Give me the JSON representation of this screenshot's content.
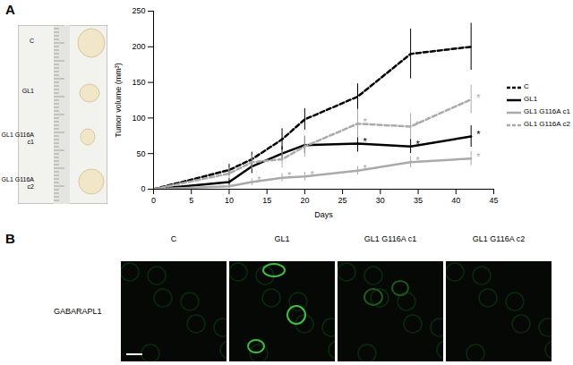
{
  "chart_data": {
    "type": "line",
    "x": [
      0,
      10,
      13,
      17,
      20,
      27,
      34,
      42
    ],
    "xlabel": "Days",
    "ylabel": "Tumor volume (mm³)",
    "xlim": [
      0,
      45
    ],
    "xticks": [
      0,
      5,
      10,
      15,
      20,
      25,
      30,
      35,
      40,
      45
    ],
    "ylim": [
      0,
      250
    ],
    "yticks": [
      0,
      50,
      100,
      150,
      200,
      250
    ],
    "grid": false,
    "legend": "right",
    "series": [
      {
        "name": "C",
        "color": "#000000",
        "line_style": "dashed",
        "values": [
          0,
          27,
          42,
          70,
          98,
          130,
          190,
          200
        ],
        "errors": [
          null,
          8,
          10,
          15,
          15,
          18,
          35,
          33
        ],
        "significance": [
          null,
          null,
          null,
          null,
          null,
          null,
          null,
          null
        ]
      },
      {
        "name": "GL1",
        "color": "#000000",
        "line_style": "solid",
        "values": [
          0,
          10,
          32,
          50,
          62,
          64,
          60,
          74
        ],
        "errors": [
          null,
          5,
          10,
          10,
          12,
          12,
          10,
          15
        ],
        "significance": [
          null,
          null,
          null,
          null,
          null,
          "*",
          "*",
          "*"
        ]
      },
      {
        "name": "GL1 G116A c1",
        "color": "#aaaaaa",
        "line_style": "solid",
        "values": [
          0,
          4,
          10,
          16,
          18,
          26,
          38,
          43
        ],
        "errors": [
          null,
          3,
          5,
          6,
          6,
          6,
          8,
          10
        ],
        "significance": [
          null,
          null,
          "*",
          "*",
          "*",
          "*",
          "*",
          "*"
        ]
      },
      {
        "name": "GL1 G116A c2",
        "color": "#aaaaaa",
        "line_style": "dashed",
        "values": [
          0,
          22,
          38,
          42,
          60,
          92,
          88,
          126
        ],
        "errors": [
          null,
          8,
          10,
          12,
          15,
          20,
          18,
          20
        ],
        "significance": [
          null,
          null,
          null,
          null,
          null,
          "*",
          "*",
          "*"
        ]
      }
    ]
  },
  "panel_a": {
    "label": "A",
    "photo_labels": [
      "C",
      "GL1",
      "GL1 G116A c1",
      "GL1 G116A c2"
    ]
  },
  "panel_b": {
    "label": "B",
    "row_label": "GABARAPL1",
    "column_labels": [
      "C",
      "GL1",
      "GL1 G116A c1",
      "GL1 G116A c2"
    ]
  }
}
